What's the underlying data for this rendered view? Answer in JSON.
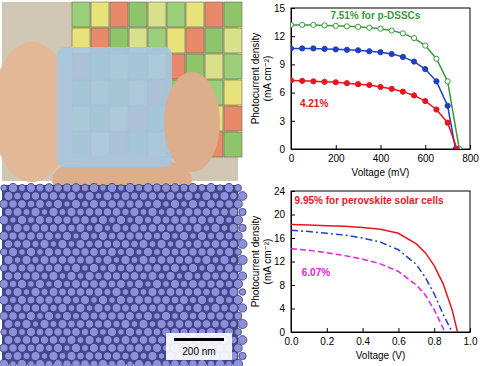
{
  "chart_data": [
    {
      "type": "line",
      "x_label": "Voltage (mV)",
      "y_label": "Photocurrent density (mA cm⁻²)",
      "xlim": [
        0,
        800
      ],
      "ylim": [
        0,
        15
      ],
      "xticks": [
        0,
        200,
        400,
        600,
        800
      ],
      "yticks": [
        0,
        3,
        6,
        9,
        12,
        15
      ],
      "series": [
        {
          "color": "#3a9a3a",
          "marker": "circle-open",
          "line_style": "solid",
          "x": [
            0,
            50,
            100,
            150,
            200,
            250,
            300,
            350,
            400,
            450,
            500,
            550,
            600,
            650,
            700,
            752
          ],
          "values": [
            13.2,
            13.2,
            13.2,
            13.15,
            13.1,
            13.05,
            13.0,
            12.9,
            12.8,
            12.6,
            12.3,
            11.8,
            11.0,
            9.6,
            7.2,
            0
          ]
        },
        {
          "color": "#1f3fbf",
          "marker": "circle",
          "line_style": "solid",
          "x": [
            0,
            50,
            100,
            150,
            200,
            250,
            300,
            350,
            400,
            450,
            500,
            550,
            600,
            650,
            700,
            735
          ],
          "values": [
            10.7,
            10.7,
            10.7,
            10.65,
            10.6,
            10.55,
            10.5,
            10.4,
            10.3,
            10.1,
            9.8,
            9.3,
            8.5,
            7.2,
            4.6,
            0
          ]
        },
        {
          "color": "#e8141e",
          "marker": "circle",
          "line_style": "solid",
          "x": [
            0,
            50,
            100,
            150,
            200,
            250,
            300,
            350,
            400,
            450,
            500,
            550,
            600,
            650,
            700,
            742
          ],
          "values": [
            7.3,
            7.25,
            7.2,
            7.15,
            7.1,
            7.0,
            6.9,
            6.8,
            6.6,
            6.4,
            6.1,
            5.7,
            5.1,
            4.2,
            2.8,
            0
          ]
        }
      ],
      "annotations": [
        {
          "text": "7.51% for p-DSSCs",
          "color": "#3a9a3a"
        },
        {
          "text": "4.21%",
          "color": "#e8141e"
        }
      ]
    },
    {
      "type": "line",
      "x_label": "Voltage (V)",
      "y_label": "Photocurrent density (mA cm⁻²)",
      "xlim": [
        0,
        1.0
      ],
      "ylim": [
        0,
        24
      ],
      "xticks": [
        {
          "value": 0,
          "label": "0.0"
        },
        {
          "value": 0.2,
          "label": "0.2"
        },
        {
          "value": 0.4,
          "label": "0.4"
        },
        {
          "value": 0.6,
          "label": "0.6"
        },
        {
          "value": 0.8,
          "label": "0.8"
        },
        {
          "value": 1.0,
          "label": "1.0"
        }
      ],
      "yticks": [
        0,
        4,
        8,
        12,
        16,
        20,
        24
      ],
      "series": [
        {
          "color": "#e8141e",
          "marker": "none",
          "line_style": "solid",
          "x": [
            0,
            0.1,
            0.2,
            0.3,
            0.4,
            0.5,
            0.6,
            0.7,
            0.75,
            0.8,
            0.85,
            0.9,
            0.93
          ],
          "values": [
            18.3,
            18.2,
            18.1,
            18.0,
            17.8,
            17.5,
            16.8,
            15.0,
            13.5,
            11.3,
            8.2,
            3.8,
            0
          ]
        },
        {
          "color": "#1f3fbf",
          "marker": "none",
          "line_style": "dashdot",
          "x": [
            0,
            0.1,
            0.2,
            0.3,
            0.4,
            0.5,
            0.6,
            0.7,
            0.75,
            0.8,
            0.85,
            0.9
          ],
          "values": [
            17.3,
            17.1,
            16.8,
            16.5,
            16.0,
            15.3,
            14.0,
            11.5,
            9.3,
            6.5,
            3.0,
            0
          ]
        },
        {
          "color": "#e020e0",
          "marker": "none",
          "line_style": "dashed",
          "x": [
            0,
            0.1,
            0.2,
            0.3,
            0.4,
            0.5,
            0.6,
            0.7,
            0.75,
            0.8,
            0.86
          ],
          "values": [
            14.2,
            13.9,
            13.5,
            13.0,
            12.4,
            11.6,
            10.3,
            8.0,
            6.3,
            3.8,
            0
          ]
        }
      ],
      "annotations": [
        {
          "text": "9.95% for perovskite solar cells",
          "color": "#e8141e"
        },
        {
          "text": "6.07%",
          "color": "#e020e0"
        }
      ]
    }
  ],
  "image_scale_bar": "200 nm"
}
